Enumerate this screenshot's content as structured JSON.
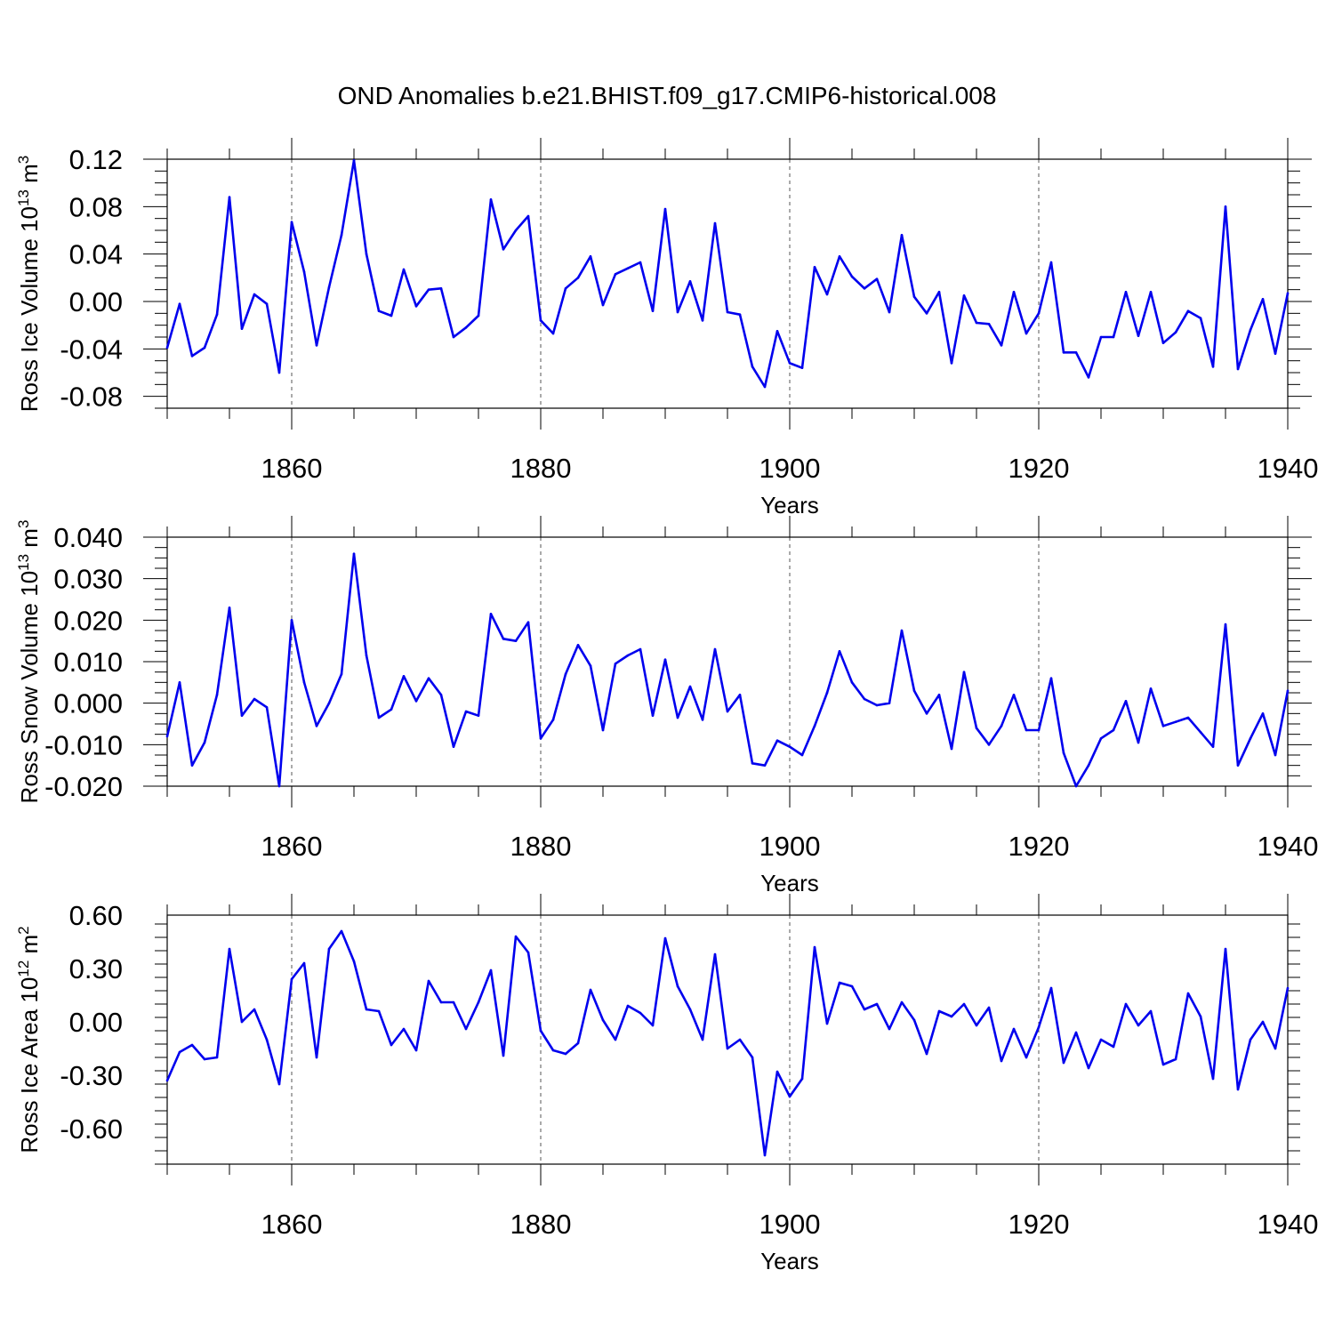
{
  "title": "OND Anomalies b.e21.BHIST.f09_g17.CMIP6-historical.008",
  "colors": {
    "line": "#0000ee",
    "axis": "#000000",
    "grid": "#555555"
  },
  "chart_data": [
    {
      "type": "line",
      "ylabel_main": "Ross Ice Volume 10",
      "ylabel_exp": "13",
      "ylabel_unit": " m",
      "ylabel_unit_exp": "3",
      "xlabel": "Years",
      "xlim": [
        1850,
        1940
      ],
      "ylim": [
        -0.09,
        0.12
      ],
      "yticks": [
        -0.08,
        -0.04,
        0.0,
        0.04,
        0.08,
        0.12
      ],
      "ytick_labels": [
        "-0.08",
        "-0.04",
        "0.00",
        "0.04",
        "0.08",
        "0.12"
      ],
      "xticks": [
        1860,
        1880,
        1900,
        1920,
        1940
      ],
      "xtick_labels": [
        "1860",
        "1880",
        "1900",
        "1920",
        "1940"
      ],
      "x_start": 1850,
      "values": [
        -0.039,
        -0.002,
        -0.046,
        -0.039,
        -0.011,
        0.088,
        -0.023,
        0.006,
        -0.002,
        -0.06,
        0.067,
        0.025,
        -0.037,
        0.012,
        0.056,
        0.119,
        0.04,
        -0.008,
        -0.012,
        0.027,
        -0.004,
        0.01,
        0.011,
        -0.03,
        -0.022,
        -0.012,
        0.086,
        0.044,
        0.06,
        0.072,
        -0.016,
        -0.027,
        0.011,
        0.02,
        0.038,
        -0.003,
        0.023,
        0.028,
        0.033,
        -0.008,
        0.078,
        -0.009,
        0.017,
        -0.016,
        0.066,
        -0.009,
        -0.011,
        -0.055,
        -0.072,
        -0.025,
        -0.052,
        -0.056,
        0.029,
        0.006,
        0.038,
        0.021,
        0.011,
        0.019,
        -0.009,
        0.056,
        0.004,
        -0.01,
        0.008,
        -0.052,
        0.005,
        -0.018,
        -0.019,
        -0.037,
        0.008,
        -0.027,
        -0.01,
        0.033,
        -0.043,
        -0.043,
        -0.064,
        -0.03,
        -0.03,
        0.008,
        -0.029,
        0.008,
        -0.035,
        -0.026,
        -0.008,
        -0.014,
        -0.055,
        0.08,
        -0.057,
        -0.024,
        0.002,
        -0.044,
        0.007
      ]
    },
    {
      "type": "line",
      "ylabel_main": "Ross Snow Volume 10",
      "ylabel_exp": "13",
      "ylabel_unit": " m",
      "ylabel_unit_exp": "3",
      "xlabel": "Years",
      "xlim": [
        1850,
        1940
      ],
      "ylim": [
        -0.02,
        0.04
      ],
      "yticks": [
        -0.02,
        -0.01,
        0.0,
        0.01,
        0.02,
        0.03,
        0.04
      ],
      "ytick_labels": [
        "-0.020",
        "-0.010",
        "0.000",
        "0.010",
        "0.020",
        "0.030",
        "0.040"
      ],
      "xticks": [
        1860,
        1880,
        1900,
        1920,
        1940
      ],
      "xtick_labels": [
        "1860",
        "1880",
        "1900",
        "1920",
        "1940"
      ],
      "x_start": 1850,
      "values": [
        -0.008,
        0.005,
        -0.015,
        -0.0095,
        0.002,
        0.023,
        -0.003,
        0.001,
        -0.001,
        -0.02,
        0.02,
        0.005,
        -0.0055,
        0.0,
        0.007,
        0.036,
        0.0115,
        -0.0035,
        -0.0015,
        0.0065,
        0.0005,
        0.006,
        0.002,
        -0.0105,
        -0.002,
        -0.003,
        0.0215,
        0.0155,
        0.015,
        0.0195,
        -0.0085,
        -0.004,
        0.007,
        0.014,
        0.009,
        -0.0065,
        0.0095,
        0.0115,
        0.013,
        -0.003,
        0.0105,
        -0.0035,
        0.004,
        -0.004,
        0.013,
        -0.002,
        0.002,
        -0.0145,
        -0.015,
        -0.009,
        -0.0105,
        -0.0125,
        -0.0055,
        0.0025,
        0.0125,
        0.005,
        0.001,
        -0.0005,
        0.0,
        0.0175,
        0.003,
        -0.0025,
        0.002,
        -0.011,
        0.0075,
        -0.006,
        -0.01,
        -0.0055,
        0.002,
        -0.0065,
        -0.0065,
        0.006,
        -0.012,
        -0.02,
        -0.015,
        -0.0085,
        -0.0065,
        0.0005,
        -0.0095,
        0.0035,
        -0.0055,
        -0.0045,
        -0.0035,
        -0.007,
        -0.0105,
        0.019,
        -0.015,
        -0.0085,
        -0.0025,
        -0.0125,
        0.003
      ]
    },
    {
      "type": "line",
      "ylabel_main": "Ross Ice Area 10",
      "ylabel_exp": "12",
      "ylabel_unit": " m",
      "ylabel_unit_exp": "2",
      "xlabel": "Years",
      "xlim": [
        1850,
        1940
      ],
      "ylim": [
        -0.8,
        0.6
      ],
      "yticks": [
        -0.6,
        -0.3,
        0.0,
        0.3,
        0.6
      ],
      "ytick_labels": [
        "-0.60",
        "-0.30",
        "0.00",
        "0.30",
        "0.60"
      ],
      "xticks": [
        1860,
        1880,
        1900,
        1920,
        1940
      ],
      "xtick_labels": [
        "1860",
        "1880",
        "1900",
        "1920",
        "1940"
      ],
      "x_start": 1850,
      "values": [
        -0.33,
        -0.17,
        -0.13,
        -0.21,
        -0.2,
        0.41,
        0.0,
        0.07,
        -0.1,
        -0.35,
        0.24,
        0.33,
        -0.2,
        0.41,
        0.51,
        0.34,
        0.07,
        0.06,
        -0.13,
        -0.04,
        -0.16,
        0.23,
        0.11,
        0.11,
        -0.04,
        0.11,
        0.29,
        -0.19,
        0.48,
        0.39,
        -0.05,
        -0.16,
        -0.18,
        -0.12,
        0.18,
        0.01,
        -0.1,
        0.09,
        0.05,
        -0.02,
        0.47,
        0.2,
        0.07,
        -0.1,
        0.38,
        -0.15,
        -0.1,
        -0.2,
        -0.75,
        -0.28,
        -0.42,
        -0.32,
        0.42,
        -0.01,
        0.22,
        0.2,
        0.07,
        0.1,
        -0.04,
        0.11,
        0.01,
        -0.18,
        0.06,
        0.03,
        0.1,
        -0.02,
        0.08,
        -0.22,
        -0.04,
        -0.2,
        -0.03,
        0.19,
        -0.23,
        -0.06,
        -0.26,
        -0.1,
        -0.14,
        0.1,
        -0.02,
        0.06,
        -0.24,
        -0.21,
        0.16,
        0.03,
        -0.32,
        0.41,
        -0.38,
        -0.1,
        0.0,
        -0.15,
        0.19
      ]
    }
  ]
}
